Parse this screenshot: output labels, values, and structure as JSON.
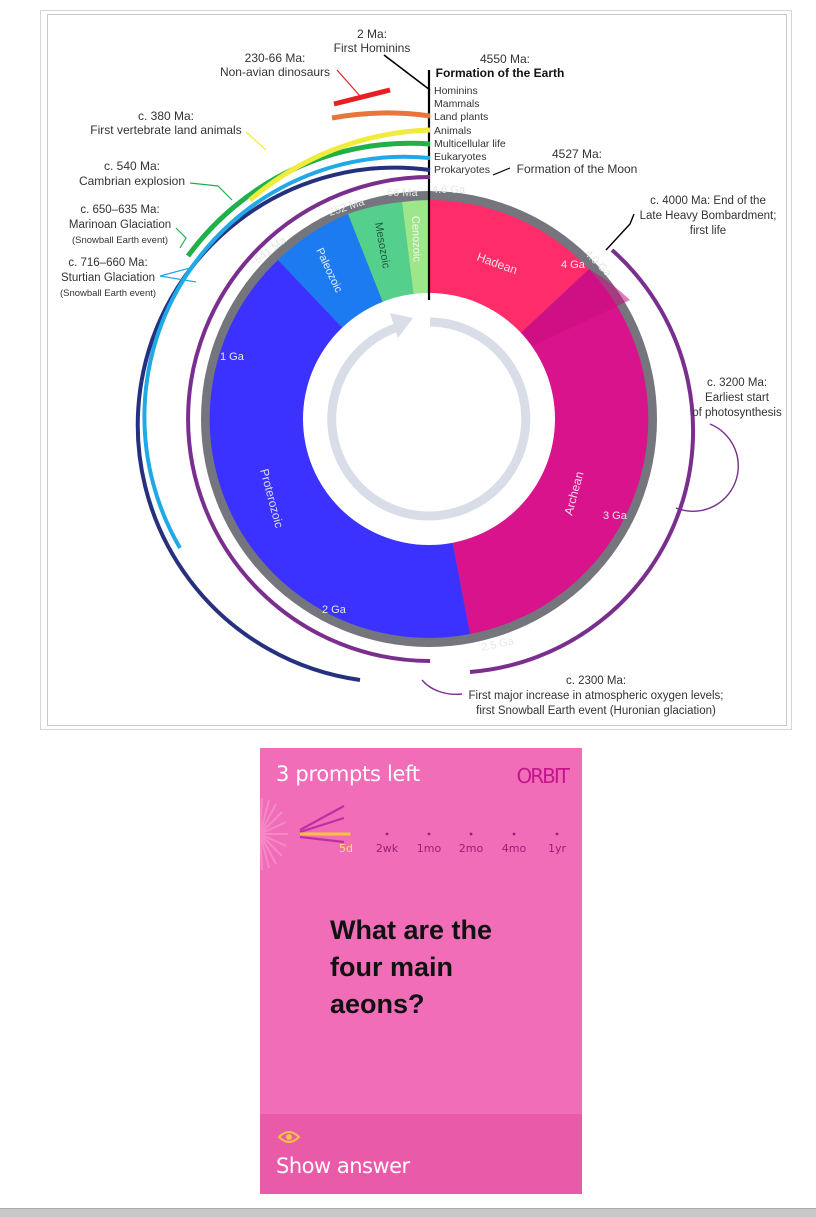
{
  "figure": {
    "center_labels": [
      "4.6 Ga",
      "66 Ma",
      "252 Ma",
      "541 Ma",
      "1 Ga",
      "2 Ga",
      "2.5 Ga",
      "3 Ga",
      "4 Ga",
      "4.0 Ga"
    ],
    "aeons": [
      {
        "name": "Hadean",
        "color": "#ff2c6a"
      },
      {
        "name": "Archean",
        "color": "#d9138b"
      },
      {
        "name": "Proterozoic",
        "color": "#3b32ff"
      }
    ],
    "eras": [
      {
        "name": "Paleozoic",
        "color": "#1d7bf2"
      },
      {
        "name": "Mesozoic",
        "color": "#54cf8c"
      },
      {
        "name": "Cenozoic",
        "color": "#9de68a"
      }
    ],
    "top_stack": [
      "Hominins",
      "Mammals",
      "Land plants",
      "Animals",
      "Multicellular life",
      "Eukaryotes",
      "Prokaryotes"
    ],
    "events": {
      "hominins": {
        "time": "2 Ma:",
        "text": "First Hominins"
      },
      "dinosaurs": {
        "time": "230-66 Ma:",
        "text": "Non-avian dinosaurs"
      },
      "earth": {
        "time": "4550 Ma:",
        "text": "Formation of the Earth"
      },
      "land_animals": {
        "time": "c. 380 Ma:",
        "text": "First vertebrate land animals"
      },
      "moon": {
        "time": "4527 Ma:",
        "text": "Formation of the Moon"
      },
      "cambrian": {
        "time": "c. 540 Ma:",
        "text": "Cambrian explosion"
      },
      "bombardment": {
        "line1": "c. 4000 Ma: End of the",
        "line2": "Late Heavy Bombardment;",
        "line3": "first life"
      },
      "marinoan": {
        "line1": "c. 650–635 Ma:",
        "line2": "Marinoan Glaciation",
        "line3": "(Snowball Earth event)"
      },
      "sturtian": {
        "line1": "c. 716–660 Ma:",
        "line2": "Sturtian Glaciation",
        "line3": "(Snowball Earth event)"
      },
      "photosynthesis": {
        "line1": "c. 3200 Ma:",
        "line2": "Earliest start",
        "line3": "of photosynthesis"
      },
      "oxygen": {
        "line1": "c. 2300 Ma:",
        "line2": "First major increase in atmospheric oxygen levels;",
        "line3": "first Snowball Earth event (Huronian glaciation)"
      }
    },
    "colors": {
      "ring": "#75767d",
      "inner_arrow": "#d8dde8"
    }
  },
  "card": {
    "prompts_left": "3 prompts left",
    "logo": "ORBIT",
    "intervals": [
      "5d",
      "2wk",
      "1mo",
      "2mo",
      "4mo",
      "1yr"
    ],
    "question": "What are the four main aeons?",
    "show_answer": "Show answer",
    "colors": {
      "background": "#f26db8",
      "footer": "#e95aa8",
      "accent": "#f7c244",
      "logo": "#c4168b"
    }
  }
}
